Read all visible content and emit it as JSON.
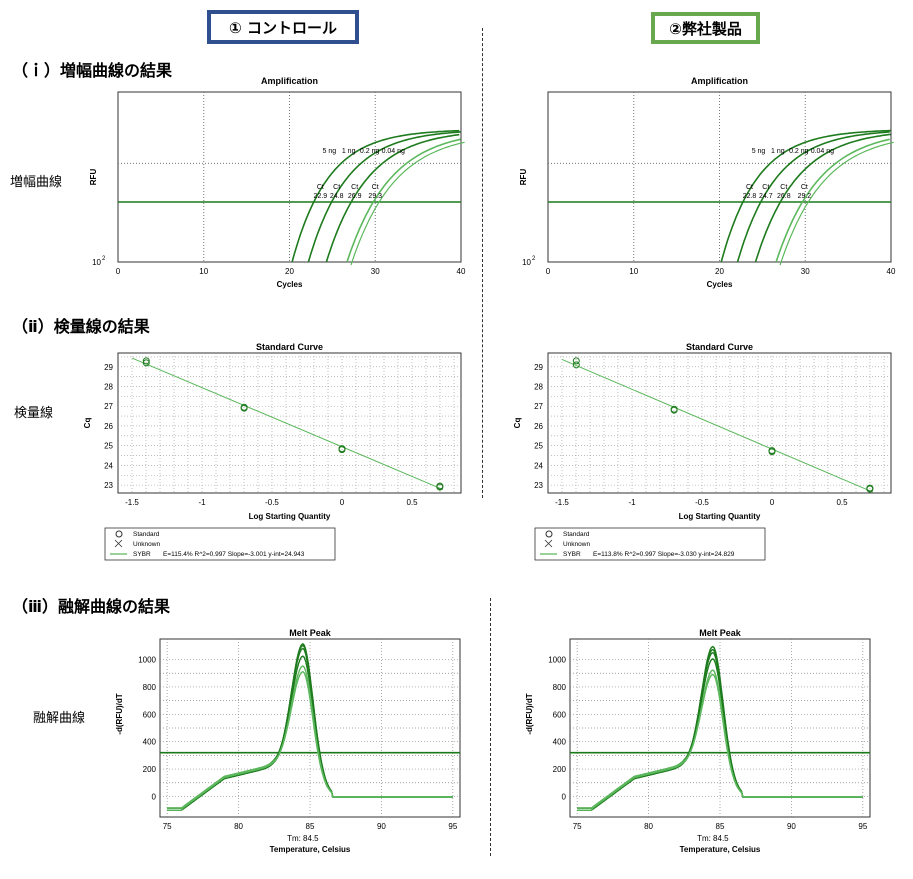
{
  "headers": {
    "left": "① コントロール",
    "right": "②弊社製品"
  },
  "sections": {
    "amp": "（ｉ）増幅曲線の結果",
    "std": "（ⅱ）検量線の結果",
    "melt": "（ⅲ）融解曲線の結果"
  },
  "row_labels": {
    "amp": "増幅曲線",
    "std": "検量線",
    "melt": "融解曲線"
  },
  "chart_data": [
    {
      "id": "amp-left",
      "type": "line",
      "title": "Amplification",
      "xlabel": "Cycles",
      "ylabel": "RFU",
      "xlim": [
        0,
        40
      ],
      "xticks": [
        "0",
        "10",
        "20",
        "30",
        "40"
      ],
      "ytick": "10",
      "ytick_exp": "2",
      "grid": true,
      "threshold": true,
      "series": [
        {
          "ct": 22.9,
          "amount": "5 ng"
        },
        {
          "ct": 24.8,
          "amount": "1 ng"
        },
        {
          "ct": 26.9,
          "amount": "0.2 ng"
        },
        {
          "ct": 29.3,
          "amount": "0.04 ng"
        }
      ],
      "ct_label": "Ct"
    },
    {
      "id": "amp-right",
      "type": "line",
      "title": "Amplification",
      "xlabel": "Cycles",
      "ylabel": "RFU",
      "xlim": [
        0,
        40
      ],
      "xticks": [
        "0",
        "10",
        "20",
        "30",
        "40"
      ],
      "ytick": "10",
      "ytick_exp": "2",
      "grid": true,
      "threshold": true,
      "series": [
        {
          "ct": 22.8,
          "amount": "5 ng"
        },
        {
          "ct": 24.7,
          "amount": "1 ng"
        },
        {
          "ct": 26.8,
          "amount": "0.2 ng"
        },
        {
          "ct": 29.2,
          "amount": "0.04 ng"
        }
      ],
      "ct_label": "Ct"
    },
    {
      "id": "std-left",
      "type": "scatter",
      "title": "Standard Curve",
      "xlabel": "Log Starting Quantity",
      "ylabel": "Cq",
      "xlim": [
        -1.6,
        0.85
      ],
      "ylim": [
        22.6,
        29.7
      ],
      "xticks": [
        -1.5,
        -1.0,
        -0.5,
        0.0,
        0.5
      ],
      "yticks": [
        23,
        24,
        25,
        26,
        27,
        28,
        29
      ],
      "points": [
        [
          -1.398,
          29.3
        ],
        [
          -1.398,
          29.2
        ],
        [
          -0.699,
          26.9
        ],
        [
          -0.699,
          26.95
        ],
        [
          0.0,
          24.8
        ],
        [
          0.0,
          24.85
        ],
        [
          0.699,
          22.9
        ],
        [
          0.699,
          22.95
        ]
      ],
      "fit": {
        "slope": -3.001,
        "intercept": 24.943
      },
      "legend": {
        "standard": "Standard",
        "unknown": "Unknown",
        "series": "SYBR",
        "stats": "E=115.4% R^2=0.997 Slope=-3.001 y-int=24.943"
      }
    },
    {
      "id": "std-right",
      "type": "scatter",
      "title": "Standard Curve",
      "xlabel": "Log Starting Quantity",
      "ylabel": "Cq",
      "xlim": [
        -1.6,
        0.85
      ],
      "ylim": [
        22.6,
        29.7
      ],
      "xticks": [
        -1.5,
        -1.0,
        -0.5,
        0.0,
        0.5
      ],
      "yticks": [
        23,
        24,
        25,
        26,
        27,
        28,
        29
      ],
      "points": [
        [
          -1.398,
          29.3
        ],
        [
          -1.398,
          29.1
        ],
        [
          -0.699,
          26.8
        ],
        [
          -0.699,
          26.85
        ],
        [
          0.0,
          24.7
        ],
        [
          0.0,
          24.75
        ],
        [
          0.699,
          22.8
        ],
        [
          0.699,
          22.85
        ]
      ],
      "fit": {
        "slope": -3.03,
        "intercept": 24.829
      },
      "legend": {
        "standard": "Standard",
        "unknown": "Unknown",
        "series": "SYBR",
        "stats": "E=113.8% R^2=0.997 Slope=-3.030 y-int=24.829"
      }
    },
    {
      "id": "melt-left",
      "type": "line",
      "title": "Melt Peak",
      "xlabel": "Temperature, Celsius",
      "ylabel": "-d(RFU)/dT",
      "xlim": [
        74.5,
        95.5
      ],
      "ylim": [
        -150,
        1150
      ],
      "xticks": [
        75,
        80,
        85,
        90,
        95
      ],
      "yticks": [
        0,
        200,
        400,
        600,
        800,
        1000
      ],
      "threshold": 320,
      "tm_label": "Tm: 84.5",
      "tm": 84.5,
      "peaks": [
        1100,
        1080,
        1050,
        1010,
        930,
        880
      ]
    },
    {
      "id": "melt-right",
      "type": "line",
      "title": "Melt Peak",
      "xlabel": "Temperature, Celsius",
      "ylabel": "-d(RFU)/dT",
      "xlim": [
        74.5,
        95.5
      ],
      "ylim": [
        -150,
        1150
      ],
      "xticks": [
        75,
        80,
        85,
        90,
        95
      ],
      "yticks": [
        0,
        200,
        400,
        600,
        800,
        1000
      ],
      "threshold": 320,
      "tm_label": "Tm: 84.5",
      "tm": 84.5,
      "peaks": [
        1080,
        1050,
        1020,
        990,
        900,
        860
      ]
    }
  ],
  "colors": {
    "curve": "#1e7b1e",
    "curve_light": "#5cb85c",
    "threshold": "#1a7a1a",
    "grid": "#777777"
  }
}
